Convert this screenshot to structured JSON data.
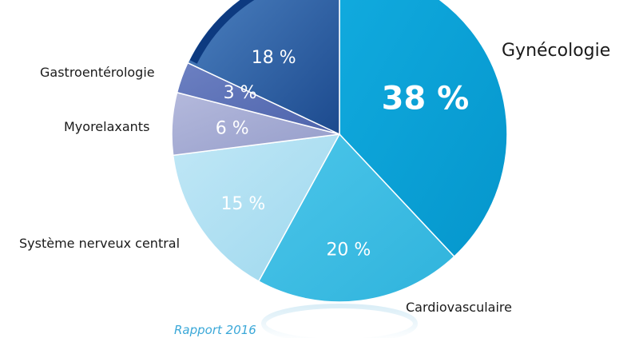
{
  "chart_data": {
    "type": "pie",
    "title": "",
    "slices": [
      {
        "category": "Gynécologie",
        "value": 38,
        "label": "38 %",
        "color": "#0aa2d7"
      },
      {
        "category": "Cardiovasculaire",
        "value": 20,
        "label": "20 %",
        "color": "#3bbce2"
      },
      {
        "category": "Système nerveux central",
        "value": 15,
        "label": "15 %",
        "color": "#a9ddf0"
      },
      {
        "category": "Myorelaxants",
        "value": 6,
        "label": "6 %",
        "color": "#a2a8d1"
      },
      {
        "category": "Gastroentérologie",
        "value": 3,
        "label": "3 %",
        "color": "#5a70b6"
      },
      {
        "category": "",
        "value": 18,
        "label": "18 %",
        "color": "#3566a6"
      }
    ],
    "footer": "Rapport 2016"
  }
}
